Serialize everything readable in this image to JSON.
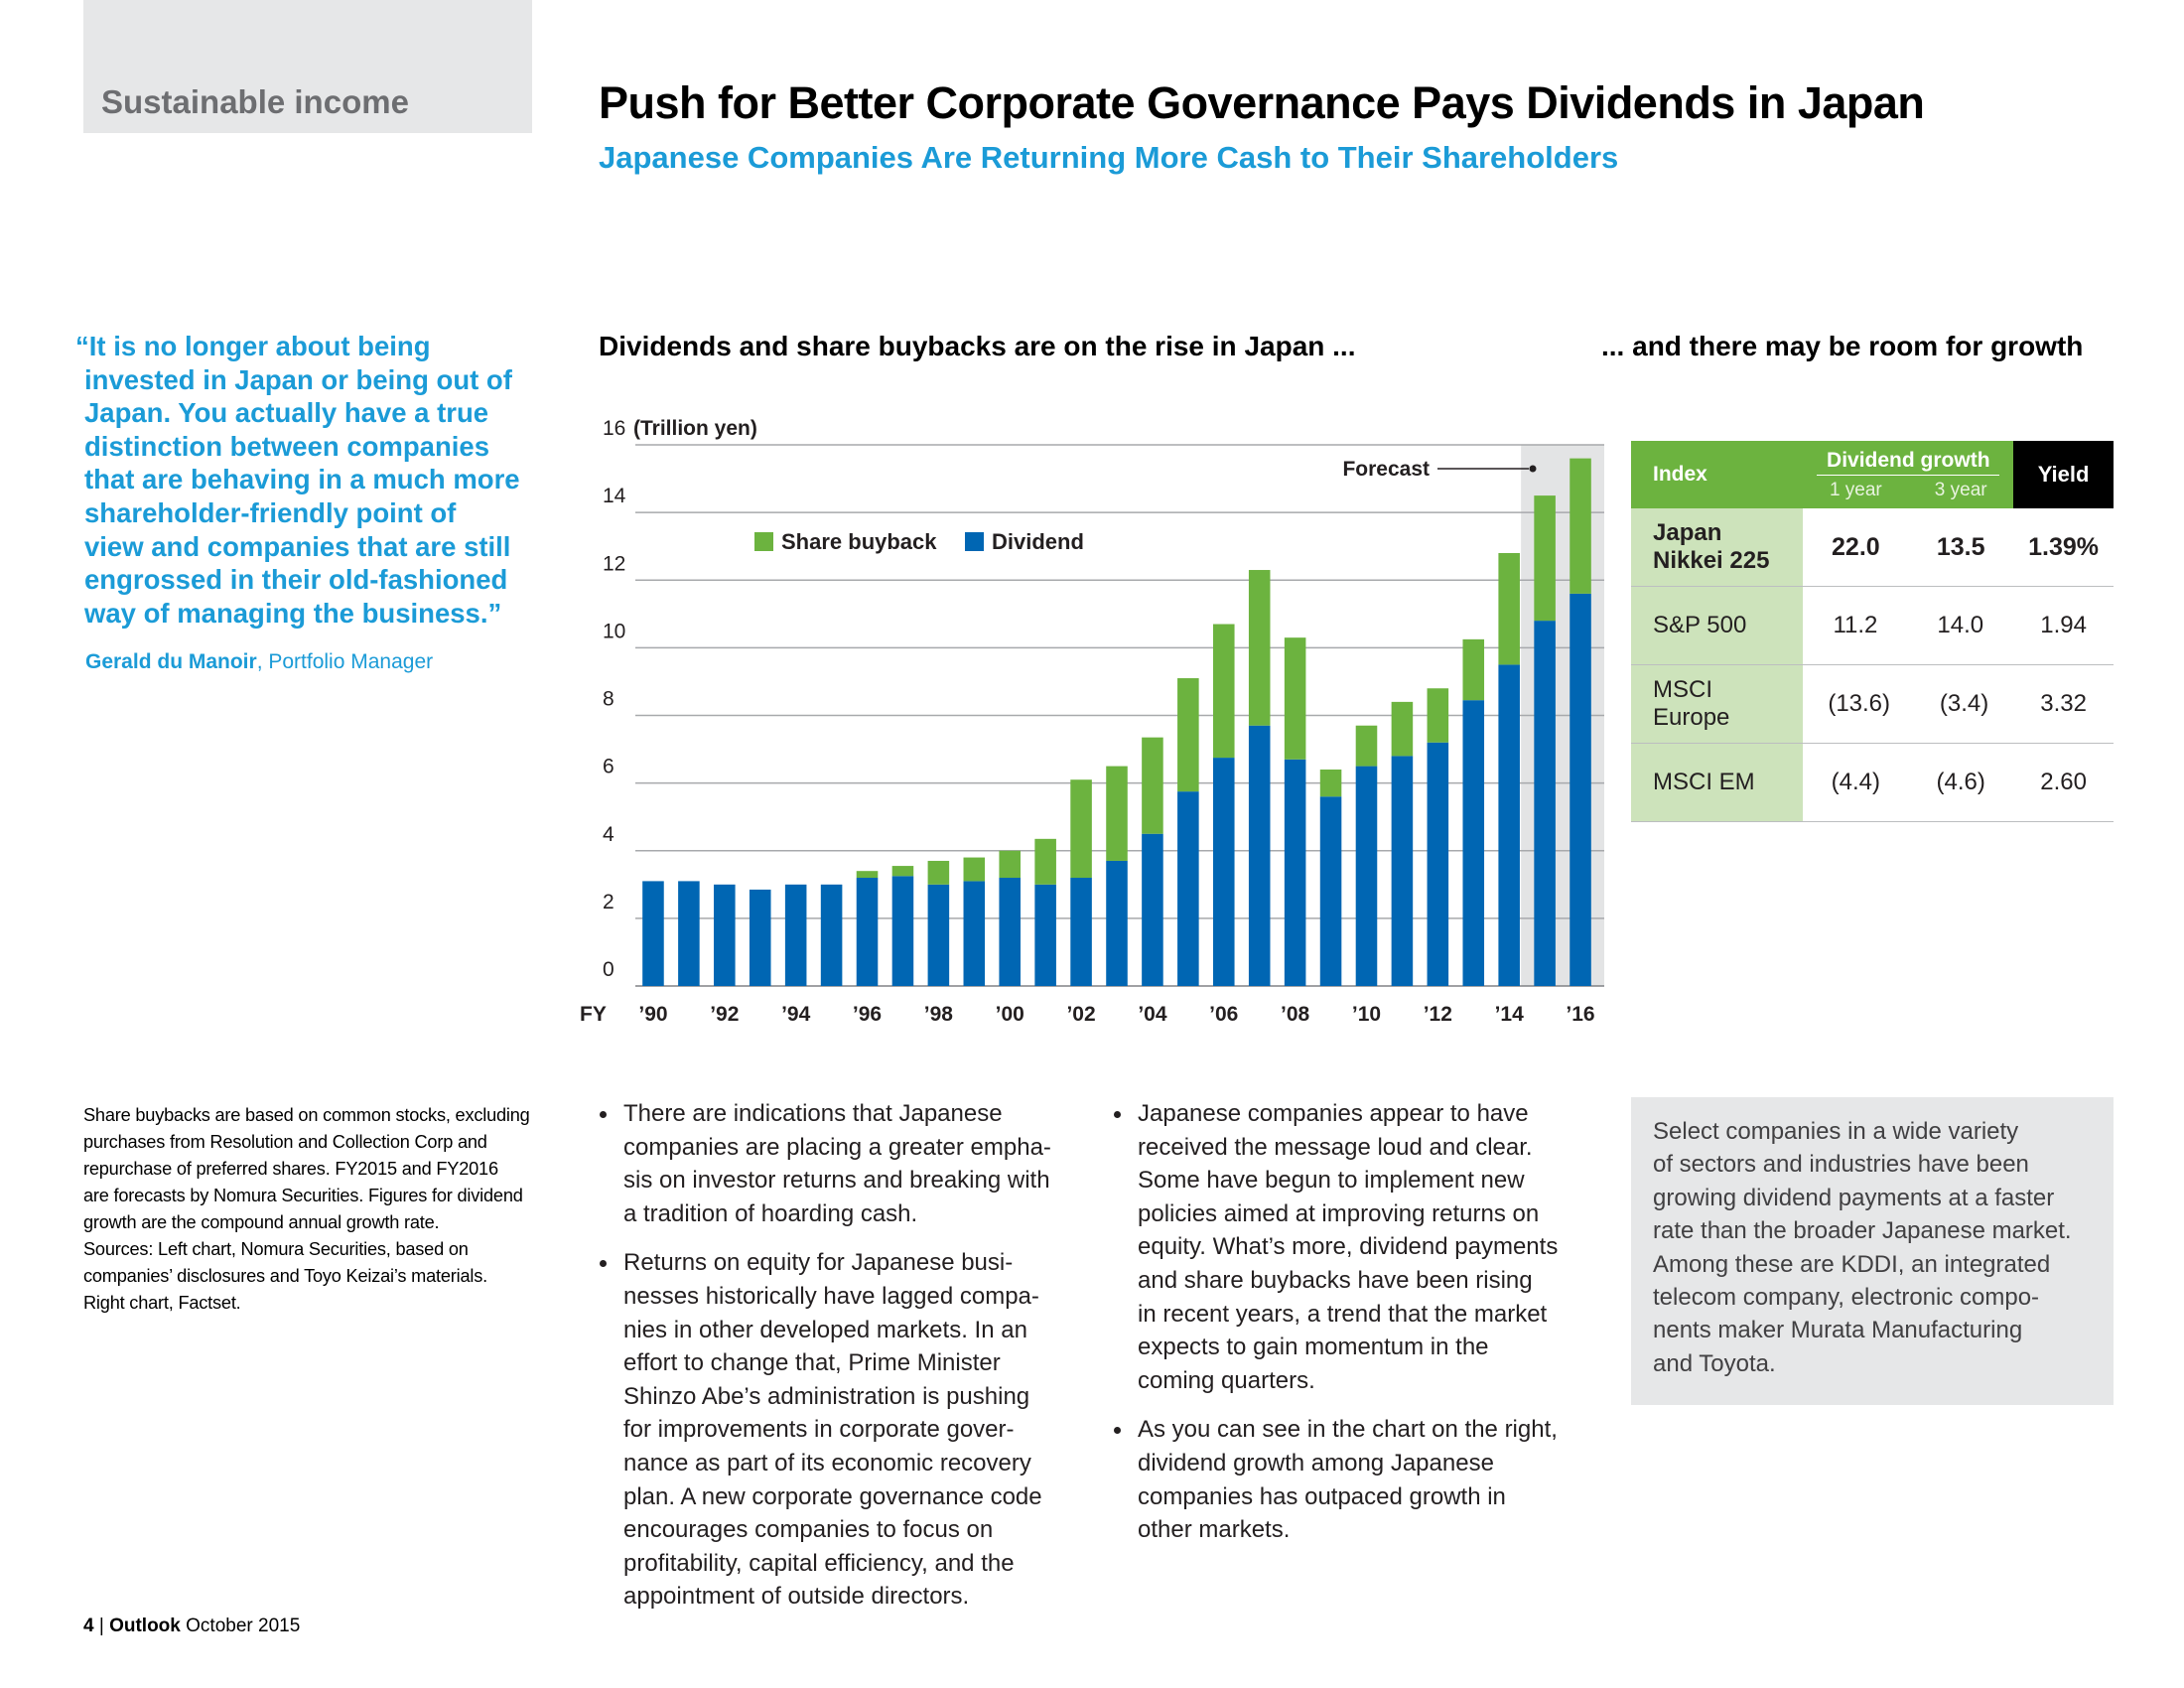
{
  "section": "Sustainable income",
  "title": "Push for Better Corporate Governance Pays Dividends in Japan",
  "subtitle": "Japanese Companies Are Returning More Cash to Their Shareholders",
  "quote": {
    "lines": [
      "“It is no longer about being",
      "invested in Japan or being out of",
      "Japan. You actually have a true",
      "distinction between companies",
      "that are behaving in a much more",
      "shareholder-friendly point of",
      "view and companies that are still",
      "engrossed in their old-fashioned",
      "way of managing the business.”"
    ],
    "author": "Gerald du Manoir",
    "role": ", Portfolio Manager"
  },
  "chart_left_title": "Dividends and share buybacks are on the rise in Japan ...",
  "chart_right_title": "... and there may be room for growth",
  "chart_data": {
    "type": "bar",
    "stacked": true,
    "ylabel": "(Trillion yen)",
    "ylim": [
      0,
      16
    ],
    "yticks": [
      0,
      2,
      4,
      6,
      8,
      10,
      12,
      14,
      16
    ],
    "grid": true,
    "legend_position": "top-left",
    "annotation": "Forecast",
    "x_prefix": "FY",
    "x_tick_labels": [
      "’90",
      "’92",
      "’94",
      "’96",
      "’98",
      "’00",
      "’02",
      "’04",
      "’06",
      "’08",
      "’10",
      "’12",
      "’14",
      "’16"
    ],
    "categories": [
      "1990",
      "1991",
      "1992",
      "1993",
      "1994",
      "1995",
      "1996",
      "1997",
      "1998",
      "1999",
      "2000",
      "2001",
      "2002",
      "2003",
      "2004",
      "2005",
      "2006",
      "2007",
      "2008",
      "2009",
      "2010",
      "2011",
      "2012",
      "2013",
      "2014",
      "2015",
      "2016"
    ],
    "forecast_categories": [
      "2015",
      "2016"
    ],
    "series": [
      {
        "name": "Dividend",
        "color": "#0066b3",
        "values": [
          3.1,
          3.1,
          3.0,
          2.85,
          3.0,
          3.0,
          3.2,
          3.25,
          3.0,
          3.1,
          3.2,
          3.0,
          3.2,
          3.7,
          4.5,
          5.75,
          6.75,
          7.7,
          6.7,
          5.6,
          6.5,
          6.8,
          7.2,
          8.45,
          9.5,
          10.8,
          11.6
        ]
      },
      {
        "name": "Share buyback",
        "color": "#6cb33f",
        "values": [
          0,
          0,
          0,
          0,
          0,
          0,
          0.2,
          0.3,
          0.7,
          0.7,
          0.8,
          1.35,
          2.9,
          2.8,
          2.85,
          3.35,
          3.95,
          4.6,
          3.6,
          0.8,
          1.2,
          1.6,
          1.6,
          1.8,
          3.3,
          3.7,
          4.0
        ]
      }
    ]
  },
  "index_table": {
    "headers": {
      "index": "Index",
      "growth": "Dividend growth",
      "sub1": "1 year",
      "sub3": "3 year",
      "yield": "Yield"
    },
    "rows": [
      {
        "lines": [
          "Japan",
          "Nikkei 225"
        ],
        "one": "22.0",
        "three": "13.5",
        "yield": "1.39%",
        "bold": true
      },
      {
        "lines": [
          "S&P 500"
        ],
        "one": "11.2",
        "three": "14.0",
        "yield": "1.94",
        "bold": false
      },
      {
        "lines": [
          "MSCI",
          "Europe"
        ],
        "one": "(13.6)",
        "three": "(3.4)",
        "yield": "3.32",
        "bold": false
      },
      {
        "lines": [
          "MSCI EM"
        ],
        "one": "(4.4)",
        "three": "(4.6)",
        "yield": "2.60",
        "bold": false
      }
    ]
  },
  "footnote_lines": [
    "Share buybacks are based on common stocks, excluding",
    "purchases from Resolution and Collection Corp and",
    "repurchase of preferred shares. FY2015 and FY2016",
    "are forecasts by Nomura Securities. Figures for dividend",
    "growth are the compound annual growth rate.",
    "Sources: Left chart, Nomura Securities, based on",
    "companies’ disclosures and Toyo Keizai’s materials.",
    "Right chart, Factset."
  ],
  "bullets_col1": [
    [
      "There are indications that Japanese",
      "companies are placing a greater empha-",
      "sis on investor returns and breaking with",
      "a tradition of hoarding cash."
    ],
    [
      "Returns on equity for Japanese busi-",
      "nesses historically have lagged compa-",
      "nies in other developed markets. In an",
      "effort to change that, Prime Minister",
      "Shinzo Abe’s administration is pushing",
      "for improvements in corporate gover-",
      "nance as part of its economic recovery",
      "plan. A new corporate governance code",
      "encourages companies to focus on",
      "profitability, capital efficiency, and the",
      "appointment of outside directors."
    ]
  ],
  "bullets_col2": [
    [
      "Japanese companies appear to have",
      "received the message loud and clear.",
      "Some have begun to implement new",
      "policies aimed at improving returns on",
      "equity. What’s more, dividend payments",
      "and share buybacks have been rising",
      "in recent years, a trend that the market",
      "expects to gain momentum in the",
      "coming quarters."
    ],
    [
      "As you can see in the chart on the right,",
      "dividend growth among Japanese",
      "companies has outpaced growth in",
      "other markets."
    ]
  ],
  "sidebox_lines": [
    "Select companies in a wide variety",
    "of sectors and industries have been",
    "growing dividend payments at a faster",
    "rate than the broader Japanese market.",
    "Among these are KDDI, an integrated",
    "telecom company, electronic compo-",
    "nents maker Murata Manufacturing",
    "and Toyota."
  ],
  "footer": {
    "page": "4",
    "sep": "|",
    "pub": "Outlook",
    "date": "October 2015"
  }
}
